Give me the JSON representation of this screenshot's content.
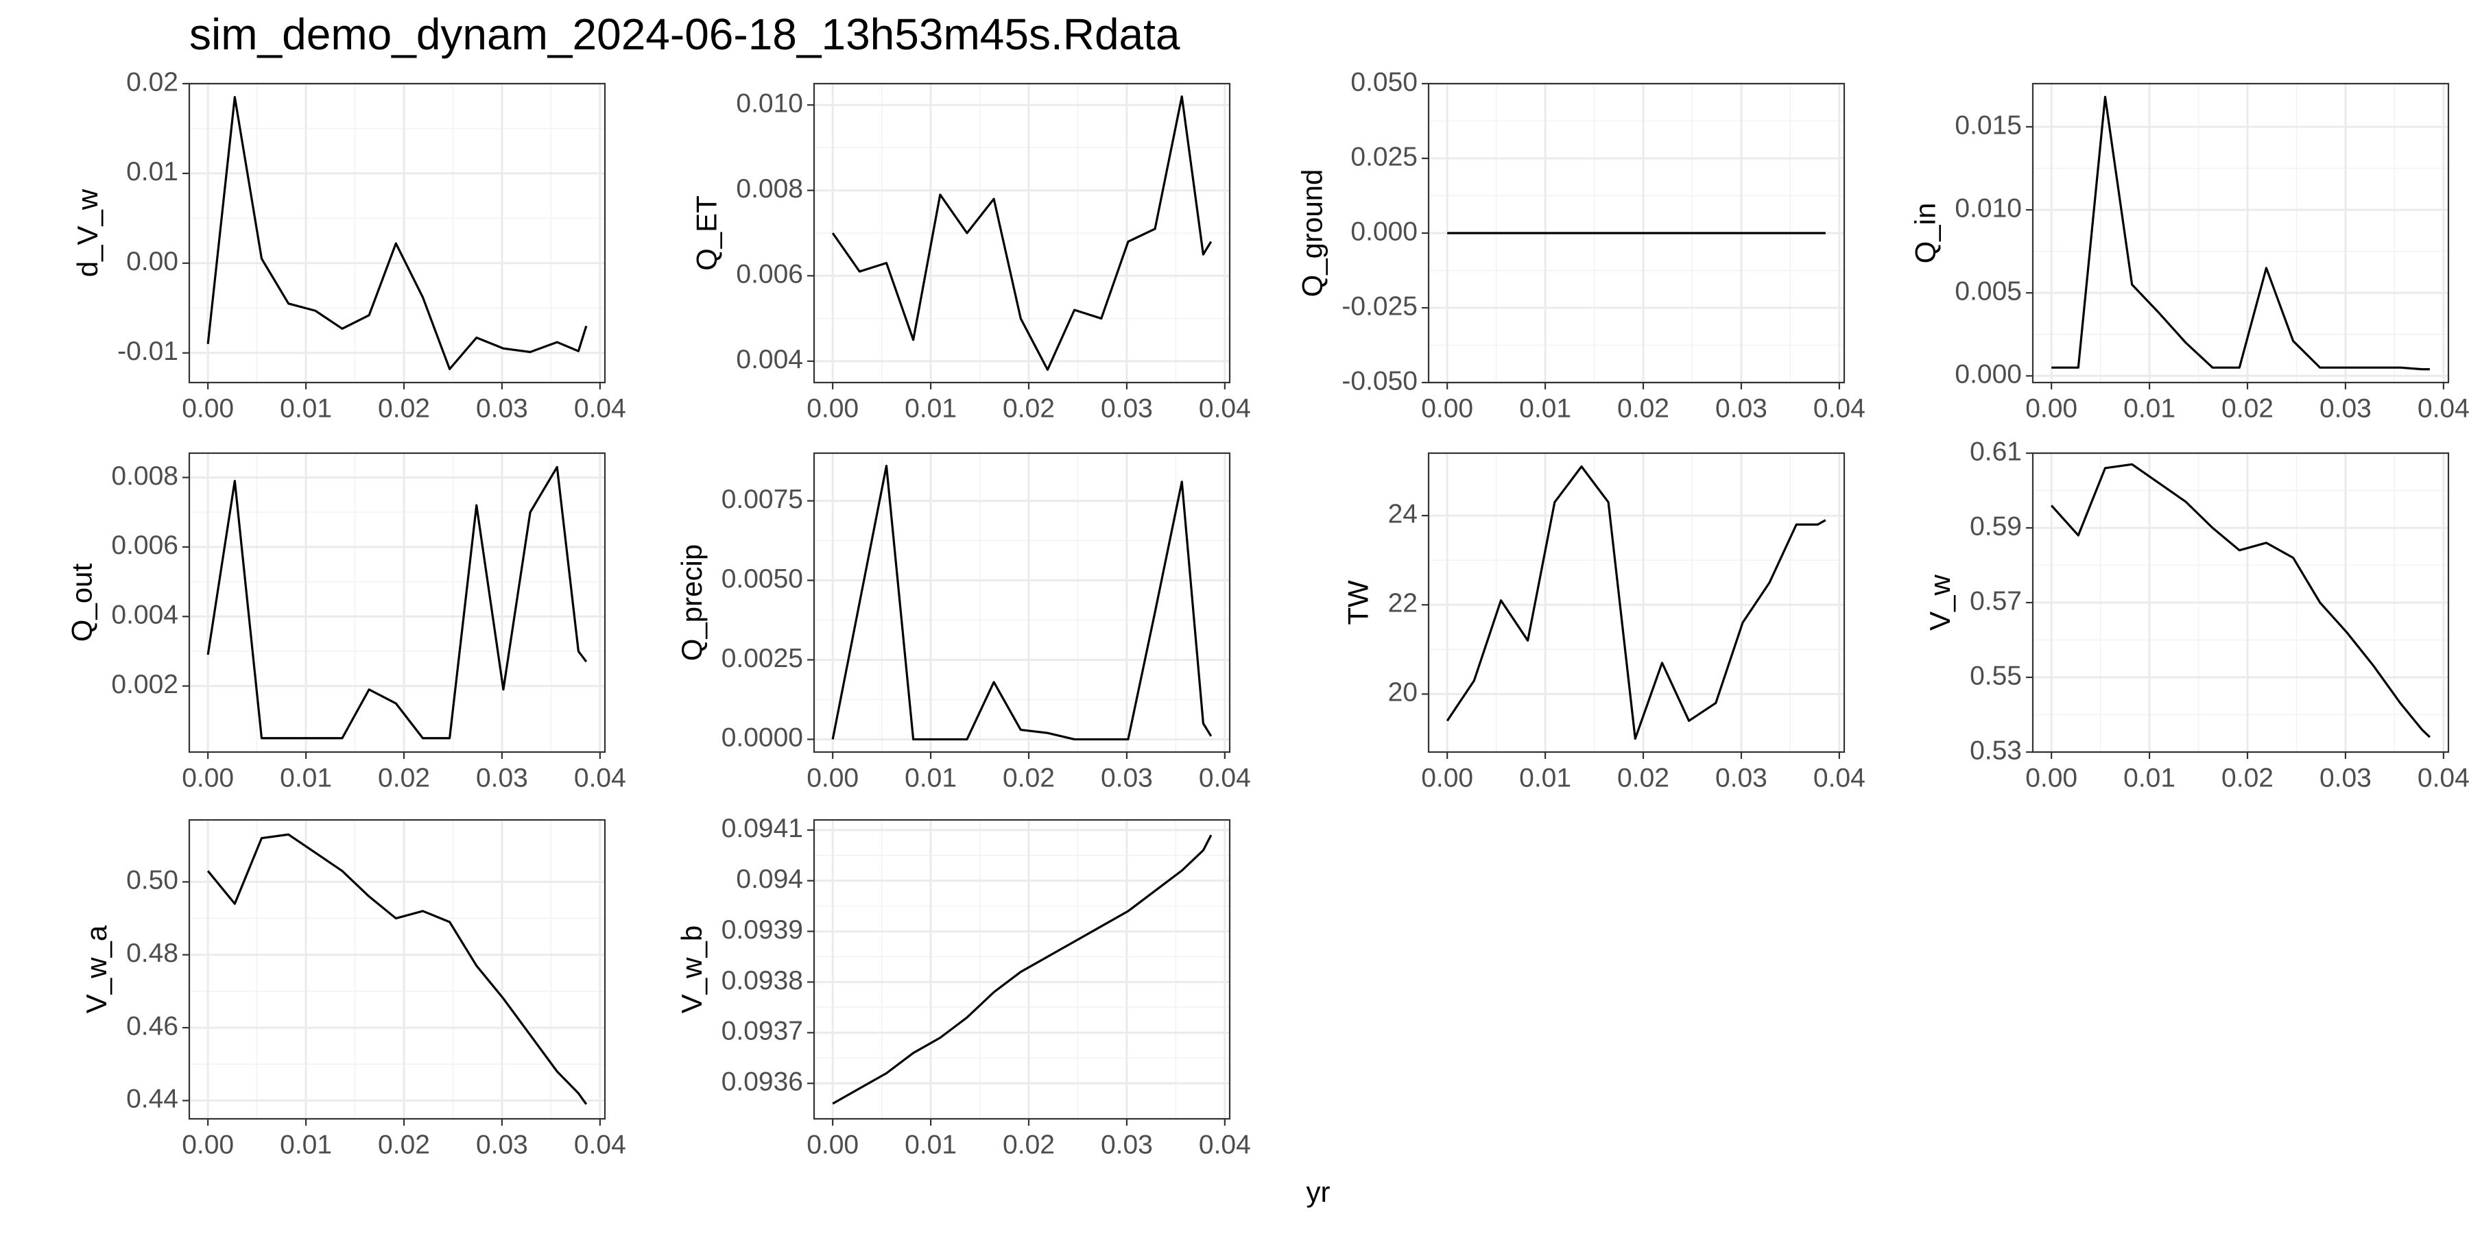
{
  "title": "sim_demo_dynam_2024-06-18_13h53m45s.Rdata",
  "xlabel": "yr",
  "chart_data": [
    {
      "type": "line",
      "ylabel": "d_V_w",
      "x": [
        0,
        0.00274,
        0.00548,
        0.00822,
        0.01096,
        0.0137,
        0.01644,
        0.01918,
        0.02192,
        0.02466,
        0.0274,
        0.03014,
        0.03288,
        0.03562,
        0.0378,
        0.0386
      ],
      "values": [
        -0.009,
        0.0185,
        0.0005,
        -0.0045,
        -0.0053,
        -0.0073,
        -0.0058,
        0.0022,
        -0.0038,
        -0.0118,
        -0.0083,
        -0.0095,
        -0.0099,
        -0.0088,
        -0.0098,
        -0.007
      ],
      "color": "#000000",
      "xlim": [
        -0.0019,
        0.0405
      ],
      "ylim": [
        -0.0133,
        0.02
      ],
      "xticks": [
        {
          "value": 0,
          "label": "0.00"
        },
        0.01,
        0.02,
        0.03,
        0.04
      ],
      "yticks": [
        -0.01,
        {
          "value": 0,
          "label": "0.00"
        },
        0.01,
        0.02
      ],
      "grid": true
    },
    {
      "type": "line",
      "ylabel": "Q_ET",
      "x": [
        0,
        0.00274,
        0.00548,
        0.00822,
        0.01096,
        0.0137,
        0.01644,
        0.01918,
        0.02192,
        0.02466,
        0.0274,
        0.03014,
        0.03288,
        0.03562,
        0.0378,
        0.0386
      ],
      "values": [
        0.007,
        0.0061,
        0.0063,
        0.0045,
        0.0079,
        0.007,
        0.0078,
        0.005,
        0.0038,
        0.0052,
        0.005,
        0.0068,
        0.0071,
        0.0102,
        0.0065,
        0.0068
      ],
      "color": "#000000",
      "xlim": [
        -0.0019,
        0.0405
      ],
      "ylim": [
        0.0035,
        0.0105
      ],
      "xticks": [
        {
          "value": 0,
          "label": "0.00"
        },
        0.01,
        0.02,
        0.03,
        0.04
      ],
      "yticks": [
        0.004,
        0.006,
        0.008,
        {
          "value": 0.01,
          "label": "0.010"
        }
      ],
      "grid": true
    },
    {
      "type": "line",
      "ylabel": "Q_ground",
      "x": [
        0,
        0.00274,
        0.00548,
        0.00822,
        0.01096,
        0.0137,
        0.01644,
        0.01918,
        0.02192,
        0.02466,
        0.0274,
        0.03014,
        0.03288,
        0.03562,
        0.0378,
        0.0386
      ],
      "values": [
        0,
        0,
        0,
        0,
        0,
        0,
        0,
        0,
        0,
        0,
        0,
        0,
        0,
        0,
        0,
        0
      ],
      "color": "#000000",
      "xlim": [
        -0.0019,
        0.0405
      ],
      "ylim": [
        -0.05,
        0.05
      ],
      "xticks": [
        {
          "value": 0,
          "label": "0.00"
        },
        0.01,
        0.02,
        0.03,
        0.04
      ],
      "yticks": [
        {
          "value": -0.05,
          "label": "-0.050"
        },
        -0.025,
        {
          "value": 0,
          "label": "0.000"
        },
        0.025,
        {
          "value": 0.05,
          "label": "0.050"
        }
      ],
      "grid": true
    },
    {
      "type": "line",
      "ylabel": "Q_in",
      "x": [
        0,
        0.00274,
        0.00548,
        0.00822,
        0.01096,
        0.0137,
        0.01644,
        0.01918,
        0.02192,
        0.02466,
        0.0274,
        0.03014,
        0.03288,
        0.03562,
        0.0378,
        0.0386
      ],
      "values": [
        0.0005,
        0.0005,
        0.0168,
        0.0055,
        0.0038,
        0.002,
        0.0005,
        0.0005,
        0.0065,
        0.0021,
        0.0005,
        0.0005,
        0.0005,
        0.0005,
        0.0004,
        0.0004
      ],
      "color": "#000000",
      "xlim": [
        -0.0019,
        0.0405
      ],
      "ylim": [
        -0.0004,
        0.0176
      ],
      "xticks": [
        {
          "value": 0,
          "label": "0.00"
        },
        0.01,
        0.02,
        0.03,
        0.04
      ],
      "yticks": [
        {
          "value": 0,
          "label": "0.000"
        },
        0.005,
        {
          "value": 0.01,
          "label": "0.010"
        },
        0.015
      ],
      "grid": true
    },
    {
      "type": "line",
      "ylabel": "Q_out",
      "x": [
        0,
        0.00274,
        0.00548,
        0.00822,
        0.01096,
        0.0137,
        0.01644,
        0.01918,
        0.02192,
        0.02466,
        0.0274,
        0.03014,
        0.03288,
        0.03562,
        0.0378,
        0.0386
      ],
      "values": [
        0.0029,
        0.0079,
        0.0005,
        0.0005,
        0.0005,
        0.0005,
        0.0019,
        0.0015,
        0.0005,
        0.0005,
        0.0072,
        0.0019,
        0.007,
        0.0083,
        0.003,
        0.0027
      ],
      "color": "#000000",
      "xlim": [
        -0.0019,
        0.0405
      ],
      "ylim": [
        0.0001,
        0.0087
      ],
      "xticks": [
        {
          "value": 0,
          "label": "0.00"
        },
        0.01,
        0.02,
        0.03,
        0.04
      ],
      "yticks": [
        0.002,
        0.004,
        0.006,
        0.008
      ],
      "grid": true
    },
    {
      "type": "line",
      "ylabel": "Q_precip",
      "x": [
        0,
        0.00274,
        0.00548,
        0.00822,
        0.01096,
        0.0137,
        0.01644,
        0.01918,
        0.02192,
        0.02466,
        0.0274,
        0.03014,
        0.03288,
        0.03562,
        0.0378,
        0.0386
      ],
      "values": [
        0,
        0.0043,
        0.0086,
        0,
        0,
        0,
        0.0018,
        0.0003,
        0.0002,
        0,
        0,
        0,
        0.004,
        0.0081,
        0.0005,
        0.0001
      ],
      "color": "#000000",
      "xlim": [
        -0.0019,
        0.0405
      ],
      "ylim": [
        -0.0004,
        0.009
      ],
      "xticks": [
        {
          "value": 0,
          "label": "0.00"
        },
        0.01,
        0.02,
        0.03,
        0.04
      ],
      "yticks": [
        {
          "value": 0,
          "label": "0.0000"
        },
        0.0025,
        {
          "value": 0.005,
          "label": "0.0050"
        },
        0.0075
      ],
      "grid": true
    },
    {
      "type": "line",
      "ylabel": "TW",
      "x": [
        0,
        0.00274,
        0.00548,
        0.00822,
        0.01096,
        0.0137,
        0.01644,
        0.01918,
        0.02192,
        0.02466,
        0.0274,
        0.03014,
        0.03288,
        0.03562,
        0.0378,
        0.0386
      ],
      "values": [
        19.4,
        20.3,
        22.1,
        21.2,
        24.3,
        25.1,
        24.3,
        19.0,
        20.7,
        19.4,
        19.8,
        21.6,
        22.5,
        23.8,
        23.8,
        23.9
      ],
      "color": "#000000",
      "xlim": [
        -0.0019,
        0.0405
      ],
      "ylim": [
        18.7,
        25.4
      ],
      "xticks": [
        {
          "value": 0,
          "label": "0.00"
        },
        0.01,
        0.02,
        0.03,
        0.04
      ],
      "yticks": [
        20,
        22,
        24
      ],
      "grid": true
    },
    {
      "type": "line",
      "ylabel": "V_w",
      "x": [
        0,
        0.00274,
        0.00548,
        0.00822,
        0.01096,
        0.0137,
        0.01644,
        0.01918,
        0.02192,
        0.02466,
        0.0274,
        0.03014,
        0.03288,
        0.03562,
        0.0378,
        0.0386
      ],
      "values": [
        0.596,
        0.588,
        0.606,
        0.607,
        0.602,
        0.597,
        0.59,
        0.584,
        0.586,
        0.582,
        0.57,
        0.562,
        0.553,
        0.543,
        0.536,
        0.534
      ],
      "color": "#000000",
      "xlim": [
        -0.0019,
        0.0405
      ],
      "ylim": [
        0.53,
        0.61
      ],
      "xticks": [
        {
          "value": 0,
          "label": "0.00"
        },
        0.01,
        0.02,
        0.03,
        0.04
      ],
      "yticks": [
        0.53,
        0.55,
        0.57,
        0.59,
        0.61
      ],
      "grid": true
    },
    {
      "type": "line",
      "ylabel": "V_w_a",
      "x": [
        0,
        0.00274,
        0.00548,
        0.00822,
        0.01096,
        0.0137,
        0.01644,
        0.01918,
        0.02192,
        0.02466,
        0.0274,
        0.03014,
        0.03288,
        0.03562,
        0.0378,
        0.0386
      ],
      "values": [
        0.503,
        0.494,
        0.512,
        0.513,
        0.508,
        0.503,
        0.496,
        0.49,
        0.492,
        0.489,
        0.477,
        0.468,
        0.458,
        0.448,
        0.442,
        0.439
      ],
      "color": "#000000",
      "xlim": [
        -0.0019,
        0.0405
      ],
      "ylim": [
        0.435,
        0.517
      ],
      "xticks": [
        {
          "value": 0,
          "label": "0.00"
        },
        0.01,
        0.02,
        0.03,
        0.04
      ],
      "yticks": [
        0.44,
        0.46,
        0.48,
        {
          "value": 0.5,
          "label": "0.50"
        }
      ],
      "grid": true
    },
    {
      "type": "line",
      "ylabel": "V_w_b",
      "x": [
        0,
        0.00274,
        0.00548,
        0.00822,
        0.01096,
        0.0137,
        0.01644,
        0.01918,
        0.02192,
        0.02466,
        0.0274,
        0.03014,
        0.03288,
        0.03562,
        0.0378,
        0.0386
      ],
      "values": [
        0.09356,
        0.09359,
        0.09362,
        0.09366,
        0.09369,
        0.09373,
        0.09378,
        0.09382,
        0.09385,
        0.09388,
        0.09391,
        0.09394,
        0.09398,
        0.09402,
        0.09406,
        0.09409
      ],
      "color": "#000000",
      "xlim": [
        -0.0019,
        0.0405
      ],
      "ylim": [
        0.09353,
        0.09412
      ],
      "xticks": [
        {
          "value": 0,
          "label": "0.00"
        },
        0.01,
        0.02,
        0.03,
        0.04
      ],
      "yticks": [
        0.0936,
        0.0937,
        0.0938,
        0.0939,
        0.094,
        0.0941
      ],
      "grid": true
    }
  ]
}
